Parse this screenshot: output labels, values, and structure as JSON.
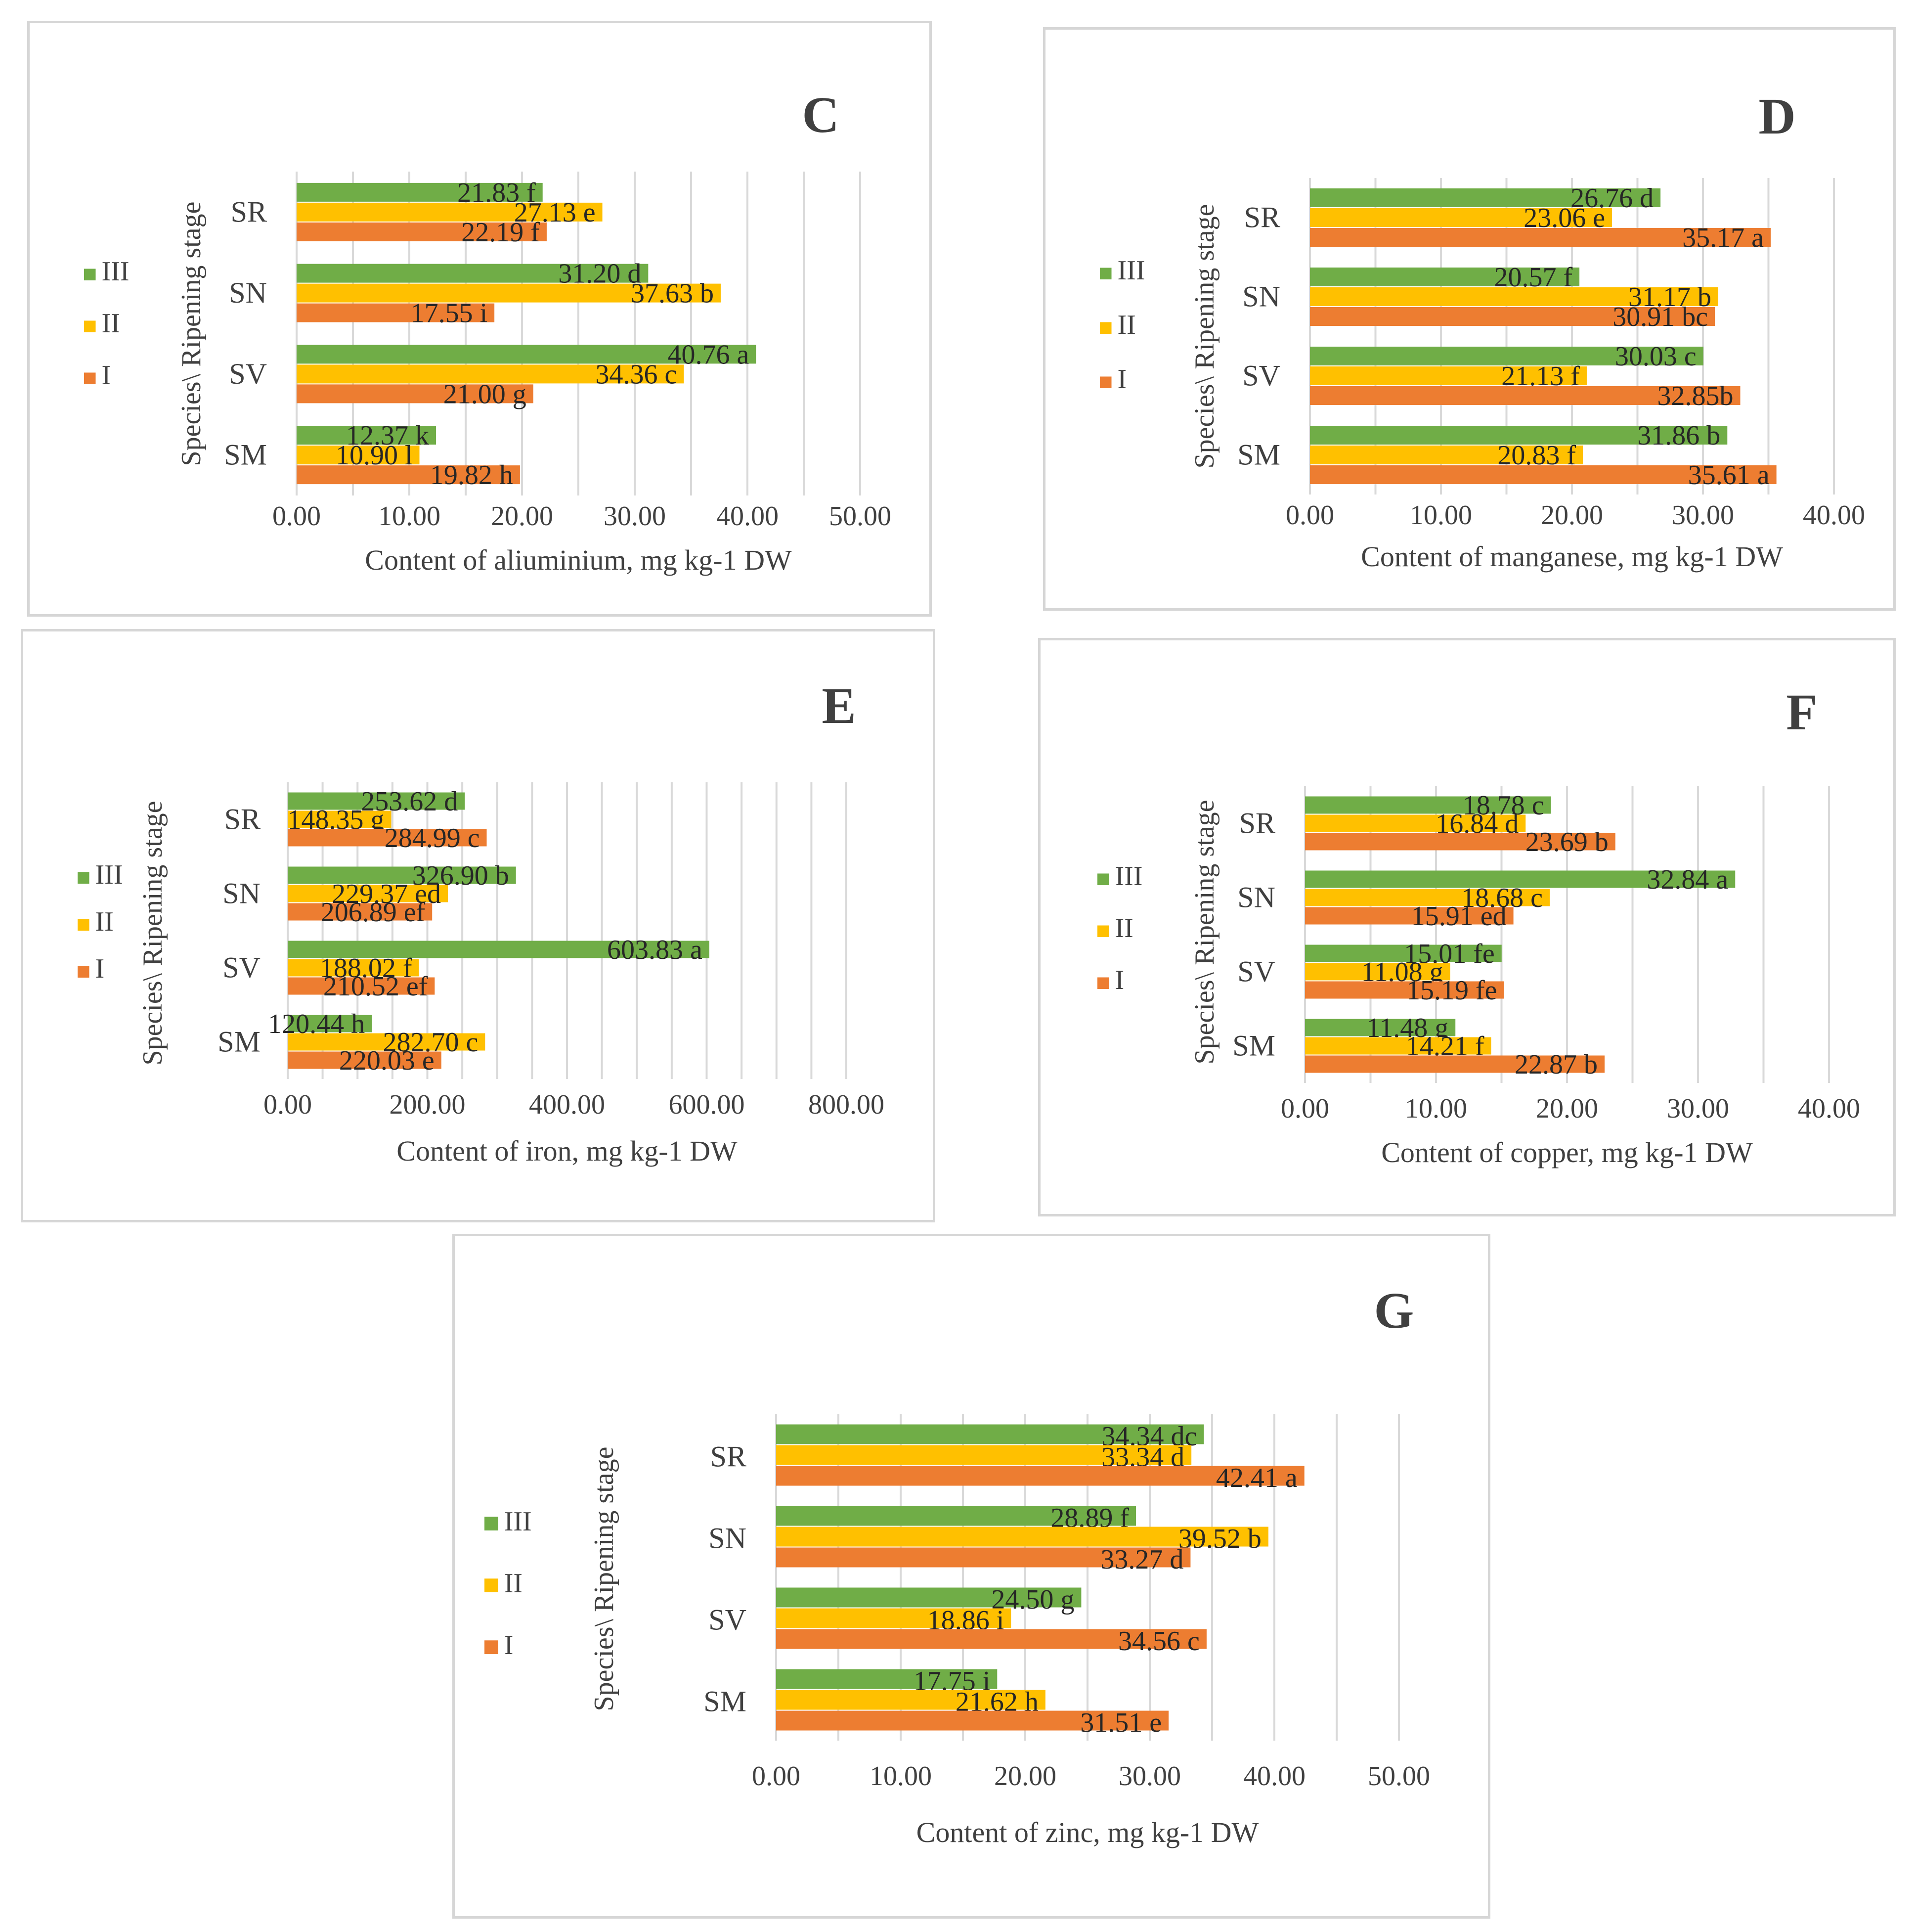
{
  "colors": {
    "III": "#70ad47",
    "II": "#ffc000",
    "I": "#ed7d31"
  },
  "chart_data": [
    {
      "id": "C",
      "panel_label": "C",
      "type": "bar",
      "categories": [
        "SR",
        "SN",
        "SV",
        "SM"
      ],
      "ylabel": "Species\\ Ripening stage",
      "xlabel": "Content of aliuminium, mg kg-1 DW",
      "xlim": [
        0,
        50
      ],
      "xticks": [
        "0.00",
        "10.00",
        "20.00",
        "30.00",
        "40.00",
        "50.00"
      ],
      "grid_step": 5,
      "legend": [
        "III",
        "II",
        "I"
      ],
      "series": [
        {
          "name": "III",
          "values": [
            21.83,
            31.2,
            40.76,
            12.37
          ],
          "labels": [
            "21.83 f",
            "31.20 d",
            "40.76 a",
            "12.37 k"
          ]
        },
        {
          "name": "II",
          "values": [
            27.13,
            37.63,
            34.36,
            10.9
          ],
          "labels": [
            "27.13 e",
            "37.63 b",
            "34.36 c",
            "10.90 l"
          ]
        },
        {
          "name": "I",
          "values": [
            22.19,
            17.55,
            21.0,
            19.82
          ],
          "labels": [
            "22.19 f",
            "17.55 i",
            "21.00 g",
            "19.82 h"
          ]
        }
      ]
    },
    {
      "id": "D",
      "panel_label": "D",
      "type": "bar",
      "categories": [
        "SR",
        "SN",
        "SV",
        "SM"
      ],
      "ylabel": "Species\\ Ripening stage",
      "xlabel": "Content of manganese, mg kg-1 DW",
      "xlim": [
        0,
        40
      ],
      "xticks": [
        "0.00",
        "10.00",
        "20.00",
        "30.00",
        "40.00"
      ],
      "grid_step": 5,
      "legend": [
        "III",
        "II",
        "I"
      ],
      "series": [
        {
          "name": "III",
          "values": [
            26.76,
            20.57,
            30.03,
            31.86
          ],
          "labels": [
            "26.76 d",
            "20.57 f",
            "30.03 c",
            "31.86 b"
          ]
        },
        {
          "name": "II",
          "values": [
            23.06,
            31.17,
            21.13,
            20.83
          ],
          "labels": [
            "23.06 e",
            "31.17 b",
            "21.13 f",
            "20.83 f"
          ]
        },
        {
          "name": "I",
          "values": [
            35.17,
            30.91,
            32.85,
            35.61
          ],
          "labels": [
            "35.17 a",
            "30.91 bc",
            "32.85b",
            "35.61 a"
          ]
        }
      ]
    },
    {
      "id": "E",
      "panel_label": "E",
      "type": "bar",
      "categories": [
        "SR",
        "SN",
        "SV",
        "SM"
      ],
      "ylabel": "Species\\ Ripening stage",
      "xlabel": "Content of iron, mg kg-1 DW",
      "xlim": [
        0,
        800
      ],
      "xticks": [
        "0.00",
        "200.00",
        "400.00",
        "600.00",
        "800.00"
      ],
      "grid_step": 50,
      "legend": [
        "III",
        "II",
        "I"
      ],
      "series": [
        {
          "name": "III",
          "values": [
            253.62,
            326.9,
            603.83,
            120.44
          ],
          "labels": [
            "253.62 d",
            "326.90 b",
            "603.83 a",
            "120.44 h"
          ]
        },
        {
          "name": "II",
          "values": [
            148.35,
            229.37,
            188.02,
            282.7
          ],
          "labels": [
            "148.35 g",
            "229.37 ed",
            "188.02 f",
            "282.70 c"
          ]
        },
        {
          "name": "I",
          "values": [
            284.99,
            206.89,
            210.52,
            220.03
          ],
          "labels": [
            "284.99 c",
            "206.89 ef",
            "210.52 ef",
            "220.03 e"
          ]
        }
      ]
    },
    {
      "id": "F",
      "panel_label": "F",
      "type": "bar",
      "categories": [
        "SR",
        "SN",
        "SV",
        "SM"
      ],
      "ylabel": "Species\\ Ripening stage",
      "xlabel": "Content of copper, mg kg-1 DW",
      "xlim": [
        0,
        40
      ],
      "xticks": [
        "0.00",
        "10.00",
        "20.00",
        "30.00",
        "40.00"
      ],
      "grid_step": 5,
      "legend": [
        "III",
        "II",
        "I"
      ],
      "series": [
        {
          "name": "III",
          "values": [
            18.78,
            32.84,
            15.01,
            11.48
          ],
          "labels": [
            "18.78 c",
            "32.84 a",
            "15.01 fe",
            "11.48 g"
          ]
        },
        {
          "name": "II",
          "values": [
            16.84,
            18.68,
            11.08,
            14.21
          ],
          "labels": [
            "16.84 d",
            "18.68 c",
            "11.08 g",
            "14.21 f"
          ]
        },
        {
          "name": "I",
          "values": [
            23.69,
            15.91,
            15.19,
            22.87
          ],
          "labels": [
            "23.69 b",
            "15.91 ed",
            "15.19 fe",
            "22.87 b"
          ]
        }
      ]
    },
    {
      "id": "G",
      "panel_label": "G",
      "type": "bar",
      "categories": [
        "SR",
        "SN",
        "SV",
        "SM"
      ],
      "ylabel": "Species\\ Ripening stage",
      "xlabel": "Content of zinc, mg kg-1 DW",
      "xlim": [
        0,
        50
      ],
      "xticks": [
        "0.00",
        "10.00",
        "20.00",
        "30.00",
        "40.00",
        "50.00"
      ],
      "grid_step": 5,
      "legend": [
        "III",
        "II",
        "I"
      ],
      "series": [
        {
          "name": "III",
          "values": [
            34.34,
            28.89,
            24.5,
            17.75
          ],
          "labels": [
            "34.34 dc",
            "28.89 f",
            "24.50 g",
            "17.75 i"
          ]
        },
        {
          "name": "II",
          "values": [
            33.34,
            39.52,
            18.86,
            21.62
          ],
          "labels": [
            "33.34 d",
            "39.52 b",
            "18.86 i",
            "21.62 h"
          ]
        },
        {
          "name": "I",
          "values": [
            42.41,
            33.27,
            34.56,
            31.51
          ],
          "labels": [
            "42.41 a",
            "33.27 d",
            "34.56 c",
            "31.51 e"
          ]
        }
      ]
    }
  ]
}
